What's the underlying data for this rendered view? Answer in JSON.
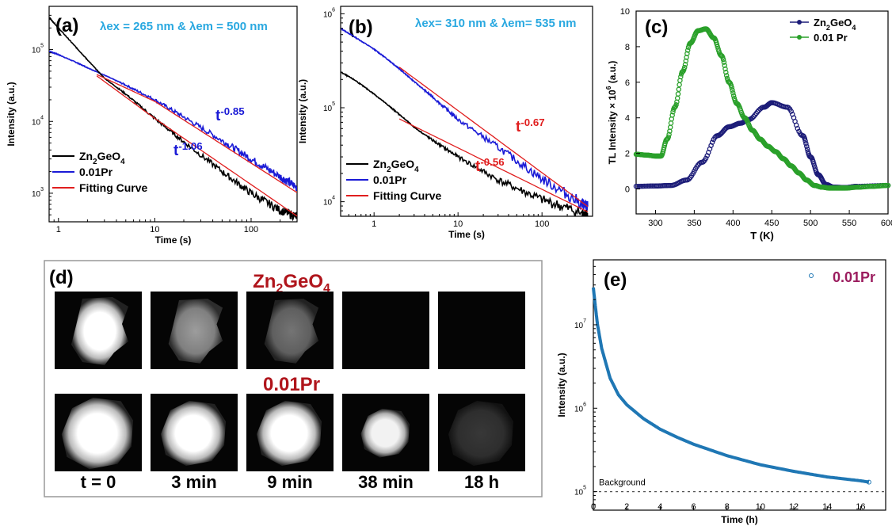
{
  "panels": {
    "a": {
      "label": "(a)",
      "annotation": "λex = 265 nm & λem = 500 nm"
    },
    "b": {
      "label": "(b)",
      "annotation": "λex= 310 nm & λem= 535 nm"
    },
    "c": {
      "label": "(c)"
    },
    "d": {
      "label": "(d)",
      "row1_title": "Zn2GeO4",
      "row2_title": "0.01Pr",
      "times": [
        "t = 0",
        "3 min",
        "9 min",
        "38 min",
        "18 h"
      ],
      "row1_brightness": [
        1.0,
        0.75,
        0.55,
        0.0,
        0.0
      ],
      "row2_brightness": [
        1.0,
        1.0,
        1.0,
        0.95,
        0.25
      ]
    },
    "e": {
      "label": "(e)"
    }
  },
  "colors": {
    "zn2geo4": "#000000",
    "pr": "#1a1ad6",
    "fit": "#e01e1e",
    "annot_cyan": "#29a8e0",
    "tl_zn": "#1c1c78",
    "tl_pr": "#2aa02a",
    "decay_e": "#1f77b4",
    "title_red": "#b0151c",
    "legend_purple": "#9b1c5e"
  },
  "chart_data": [
    {
      "id": "a",
      "type": "line",
      "xscale": "log",
      "yscale": "log",
      "xlabel": "Time (s)",
      "ylabel": "Intensity (a.u.)",
      "xlim": [
        0.8,
        300
      ],
      "ylim": [
        400,
        400000
      ],
      "xticks": [
        {
          "v": 1,
          "label": "1"
        },
        {
          "v": 10,
          "label": "10"
        },
        {
          "v": 100,
          "label": "100"
        }
      ],
      "yticks": [
        {
          "v": 1000,
          "label": "10",
          "exp": "3"
        },
        {
          "v": 10000,
          "label": "10",
          "exp": "4"
        },
        {
          "v": 100000,
          "label": "10",
          "exp": "5"
        }
      ],
      "series": [
        {
          "name": "Zn2GeO4",
          "x": [
            0.8,
            1,
            1.5,
            2,
            3,
            5,
            10,
            20,
            50,
            100,
            200,
            300
          ],
          "y": [
            280000,
            200000,
            110000,
            72000,
            40000,
            24000,
            11000,
            5200,
            2000,
            1000,
            580,
            470
          ]
        },
        {
          "name": "0.01Pr",
          "x": [
            0.8,
            1,
            1.5,
            2,
            3,
            5,
            10,
            20,
            50,
            100,
            200,
            300
          ],
          "y": [
            95000,
            85000,
            67000,
            56000,
            44000,
            32000,
            20000,
            11500,
            5400,
            3000,
            1700,
            1200
          ]
        },
        {
          "name": "Fitting Curve",
          "x": [
            2.5,
            10,
            300
          ],
          "y": [
            43000,
            11000,
            480
          ]
        },
        {
          "name": "Fitting Curve",
          "x": [
            2.5,
            10,
            300
          ],
          "y": [
            45000,
            19000,
            1020
          ]
        }
      ],
      "annotations": [
        {
          "text": "t",
          "exp": "-0.85"
        },
        {
          "text": "t",
          "exp": "-1.06"
        }
      ]
    },
    {
      "id": "b",
      "type": "line",
      "xscale": "log",
      "yscale": "log",
      "xlabel": "Time (s)",
      "ylabel": "Intensity (a.u.)",
      "xlim": [
        0.4,
        400
      ],
      "ylim": [
        7000,
        1200000
      ],
      "xticks": [
        {
          "v": 1,
          "label": "1"
        },
        {
          "v": 10,
          "label": "10"
        },
        {
          "v": 100,
          "label": "100"
        }
      ],
      "yticks": [
        {
          "v": 10000,
          "label": "10",
          "exp": "4"
        },
        {
          "v": 100000,
          "label": "10",
          "exp": "5"
        },
        {
          "v": 1000000,
          "label": "10",
          "exp": "6"
        }
      ],
      "series": [
        {
          "name": "Zn2GeO4",
          "x": [
            0.4,
            0.6,
            1,
            1.5,
            2,
            3,
            5,
            10,
            30,
            100,
            300,
            350
          ],
          "y": [
            240000,
            195000,
            140000,
            105000,
            85000,
            62000,
            45000,
            30000,
            17000,
            10500,
            7500,
            7000
          ]
        },
        {
          "name": "0.01Pr",
          "x": [
            0.4,
            0.6,
            1,
            1.5,
            2,
            3,
            5,
            10,
            30,
            100,
            300,
            350
          ],
          "y": [
            700000,
            560000,
            420000,
            320000,
            260000,
            190000,
            130000,
            75000,
            38000,
            17500,
            9500,
            8800
          ]
        },
        {
          "name": "Fitting Curve",
          "x": [
            2,
            350
          ],
          "y": [
            270000,
            8900
          ]
        },
        {
          "name": "Fitting Curve",
          "x": [
            2,
            350
          ],
          "y": [
            76000,
            7800
          ]
        }
      ],
      "annotations": [
        {
          "text": "t",
          "exp": "-0.67"
        },
        {
          "text": "t",
          "exp": "-0.56"
        }
      ]
    },
    {
      "id": "c",
      "type": "scatter",
      "xlabel": "T (K)",
      "ylabel": "TL Intensity × 10",
      "ylabel_exp": "6",
      "ylabel_unit": "(a.u.)",
      "xlim": [
        275,
        600
      ],
      "ylim": [
        -1.4,
        10
      ],
      "xticks": [
        300,
        350,
        400,
        450,
        500,
        550,
        600
      ],
      "yticks": [
        0,
        2,
        4,
        6,
        8,
        10
      ],
      "series": [
        {
          "name": "Zn2GeO4",
          "x": [
            275,
            300,
            320,
            340,
            360,
            380,
            395,
            410,
            420,
            440,
            450,
            470,
            490,
            500,
            510,
            520,
            530,
            545,
            560,
            600
          ],
          "y": [
            0.15,
            0.17,
            0.2,
            0.5,
            1.5,
            3.0,
            3.5,
            3.7,
            3.9,
            4.6,
            4.85,
            4.6,
            3.0,
            1.8,
            0.8,
            0.25,
            0.1,
            0.08,
            0.15,
            0.2
          ]
        },
        {
          "name": "0.01 Pr",
          "x": [
            275,
            290,
            300,
            307,
            315,
            325,
            335,
            345,
            355,
            365,
            375,
            385,
            395,
            405,
            415,
            425,
            435,
            445,
            455,
            465,
            475,
            485,
            495,
            505,
            515,
            525,
            535,
            545,
            560,
            580,
            600
          ],
          "y": [
            1.95,
            1.9,
            1.85,
            1.85,
            2.8,
            4.6,
            6.6,
            8.2,
            8.9,
            9.0,
            8.5,
            7.5,
            6.0,
            4.8,
            4.0,
            3.3,
            2.8,
            2.4,
            2.1,
            1.7,
            1.3,
            0.9,
            0.5,
            0.2,
            0.1,
            0.05,
            0.05,
            0.05,
            0.1,
            0.15,
            0.2
          ]
        }
      ]
    },
    {
      "id": "e",
      "type": "scatter",
      "yscale": "log",
      "xlabel": "Time (h)",
      "ylabel": "Intensity (a.u.)",
      "xlim": [
        0,
        17.5
      ],
      "ylim": [
        60000,
        60000000
      ],
      "xticks": [
        0,
        2,
        4,
        6,
        8,
        10,
        12,
        14,
        16
      ],
      "yticks": [
        {
          "v": 100000,
          "label": "10",
          "exp": "5"
        },
        {
          "v": 1000000,
          "label": "10",
          "exp": "6"
        },
        {
          "v": 10000000,
          "label": "10",
          "exp": "7"
        }
      ],
      "series": [
        {
          "name": "0.01Pr",
          "x": [
            0,
            0.1,
            0.25,
            0.5,
            1,
            1.5,
            2,
            3,
            4,
            5,
            6,
            8,
            10,
            12,
            14,
            16,
            16.5
          ],
          "y": [
            28000000,
            18000000,
            10000000,
            5200000,
            2300000,
            1450000,
            1100000,
            750000,
            560000,
            450000,
            370000,
            270000,
            210000,
            175000,
            150000,
            135000,
            130000
          ]
        }
      ],
      "background": {
        "label": "Background",
        "y": 100000
      }
    }
  ]
}
